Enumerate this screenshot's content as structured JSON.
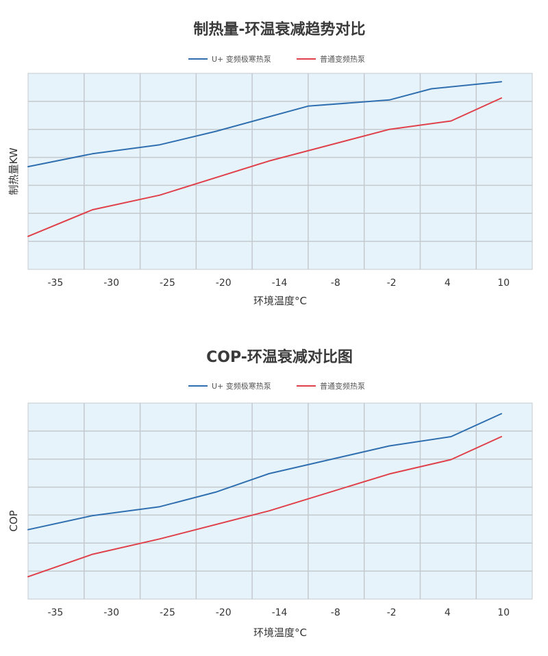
{
  "chart_data": [
    {
      "type": "line",
      "title": "制热量-环温衰减趋势对比",
      "xlabel": "环境温度°C",
      "ylabel": "制热量KW",
      "categories": [
        "-35",
        "-30",
        "-25",
        "-20",
        "-14",
        "-8",
        "-2",
        "4",
        "10"
      ],
      "ylim": [
        0,
        7
      ],
      "grid": true,
      "legend_position": "top-center",
      "series": [
        {
          "name": "U+ 变频极寒热泵",
          "color": "#2f6fb0",
          "points": [
            [
              -0.5,
              3.67
            ],
            [
              0.65,
              4.13
            ],
            [
              1.85,
              4.45
            ],
            [
              2.85,
              4.93
            ],
            [
              4.5,
              5.83
            ],
            [
              5.95,
              6.05
            ],
            [
              6.7,
              6.45
            ],
            [
              7.95,
              6.7
            ]
          ]
        },
        {
          "name": "普通变频热泵",
          "color": "#e0404a",
          "points": [
            [
              -0.5,
              1.18
            ],
            [
              0.65,
              2.13
            ],
            [
              1.85,
              2.65
            ],
            [
              3.8,
              3.87
            ],
            [
              5.95,
              5.0
            ],
            [
              7.05,
              5.3
            ],
            [
              7.95,
              6.12
            ]
          ]
        }
      ]
    },
    {
      "type": "line",
      "title": "COP-环温衰减对比图",
      "xlabel": "环境温度°C",
      "ylabel": "COP",
      "categories": [
        "-35",
        "-30",
        "-25",
        "-20",
        "-14",
        "-8",
        "-2",
        "4",
        "10"
      ],
      "ylim": [
        0,
        7
      ],
      "grid": true,
      "legend_position": "top-center",
      "series": [
        {
          "name": "U+ 变频极寒热泵",
          "color": "#2f6fb0",
          "points": [
            [
              -0.5,
              2.48
            ],
            [
              0.65,
              2.98
            ],
            [
              1.85,
              3.3
            ],
            [
              2.85,
              3.82
            ],
            [
              3.8,
              4.48
            ],
            [
              5.95,
              5.47
            ],
            [
              7.05,
              5.8
            ],
            [
              7.95,
              6.62
            ]
          ]
        },
        {
          "name": "普通变频热泵",
          "color": "#e0404a",
          "points": [
            [
              -0.5,
              0.8
            ],
            [
              0.65,
              1.6
            ],
            [
              1.85,
              2.15
            ],
            [
              3.8,
              3.15
            ],
            [
              5.95,
              4.47
            ],
            [
              7.05,
              4.98
            ],
            [
              7.95,
              5.8
            ]
          ]
        }
      ]
    }
  ]
}
